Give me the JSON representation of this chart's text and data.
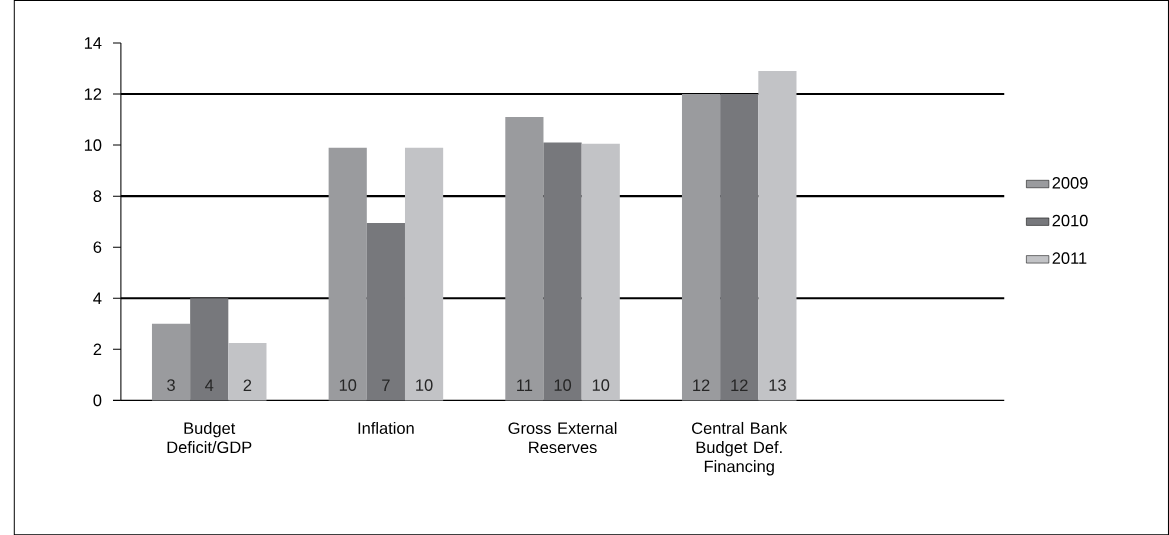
{
  "chart_data": {
    "type": "bar",
    "categories": [
      "Budget Deficit/GDP",
      "Inflation",
      "Gross External Reserves",
      "Central Bank Budget Def. Financing",
      null
    ],
    "series": [
      {
        "name": "2009",
        "color": "#9a9b9e",
        "values": [
          3.0,
          9.9,
          11.1,
          12.0,
          null
        ],
        "value_labels": [
          "3",
          "10",
          "11",
          "12",
          null
        ]
      },
      {
        "name": "2010",
        "color": "#77787c",
        "values": [
          4.0,
          6.95,
          10.1,
          12.0,
          null
        ],
        "value_labels": [
          "4",
          "7",
          "10",
          "12",
          null
        ]
      },
      {
        "name": "2011",
        "color": "#c2c3c6",
        "values": [
          2.25,
          9.9,
          10.05,
          12.9,
          null
        ],
        "value_labels": [
          "2",
          "10",
          "10",
          "13",
          null
        ]
      }
    ],
    "ylim": [
      0,
      14
    ],
    "yticks": [
      0,
      2,
      4,
      6,
      8,
      10,
      12,
      14
    ],
    "ref_lines": [
      {
        "axis": "y",
        "value": 4,
        "color": "#000000"
      },
      {
        "axis": "y",
        "value": 8,
        "color": "#000000"
      },
      {
        "axis": "y",
        "value": 12,
        "color": "#000000"
      }
    ],
    "legend": "right"
  }
}
